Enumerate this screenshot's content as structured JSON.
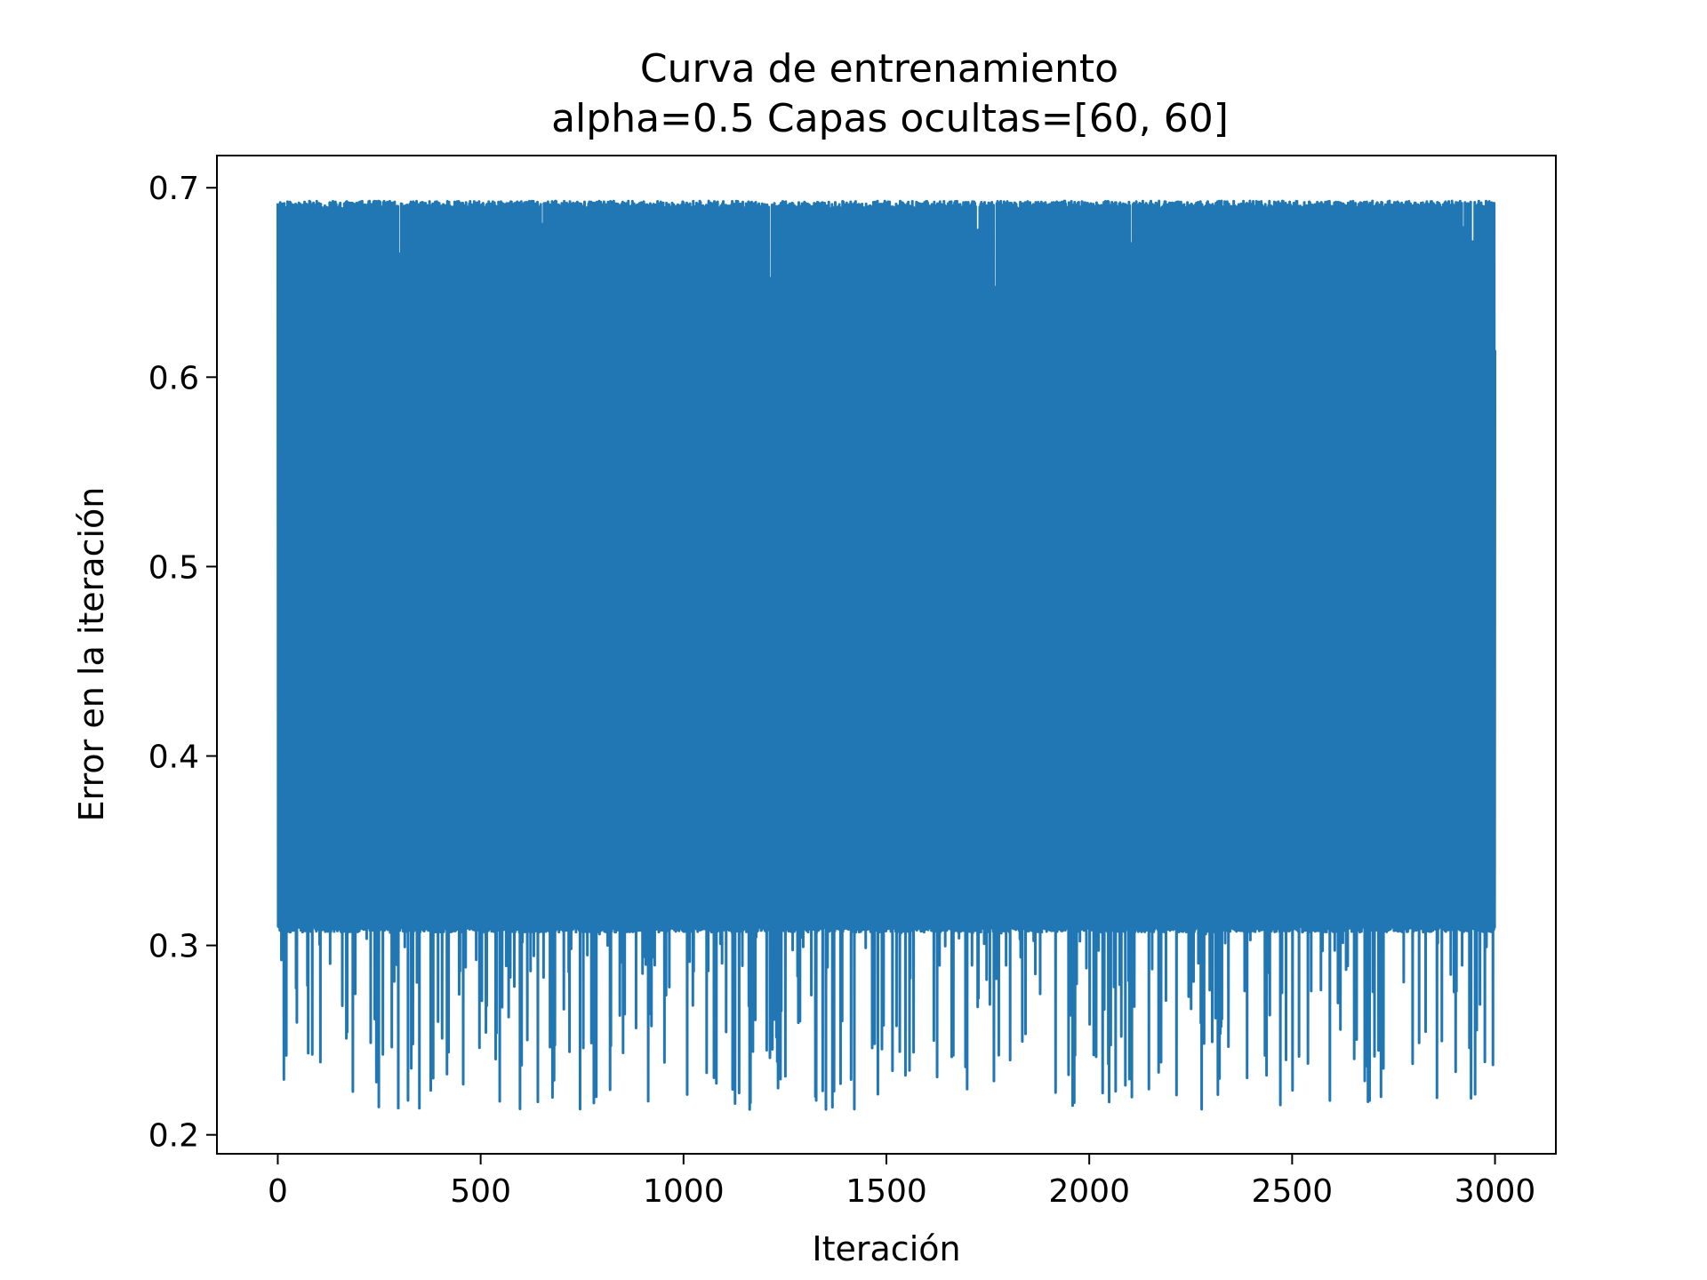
{
  "chart_data": {
    "type": "line",
    "title": "Curva de entrenamiento",
    "subtitle": "alpha=0.5 Capas ocultas=[60, 60]",
    "xlabel": "Iteración",
    "ylabel": "Error en la iteración",
    "xlim": [
      -150,
      3150
    ],
    "ylim": [
      0.19,
      0.717
    ],
    "xticks": [
      0,
      500,
      1000,
      1500,
      2000,
      2500,
      3000
    ],
    "xtick_labels": [
      "0",
      "500",
      "1000",
      "1500",
      "2000",
      "2500",
      "3000"
    ],
    "yticks": [
      0.2,
      0.3,
      0.4,
      0.5,
      0.6,
      0.7
    ],
    "ytick_labels": [
      "0.2",
      "0.3",
      "0.4",
      "0.5",
      "0.6",
      "0.7"
    ],
    "grid": false,
    "legend": "none",
    "series": [
      {
        "color": "#2077b4",
        "x_range": [
          0,
          3000
        ],
        "num_points": 3001,
        "band_upper": 0.693,
        "band_lower": 0.307,
        "upper_spike_min": 0.612,
        "lower_spike_min": 0.213,
        "description_of_pattern": "rapid oscillation between ~0.31 and ~0.69 throughout all iterations"
      }
    ]
  }
}
